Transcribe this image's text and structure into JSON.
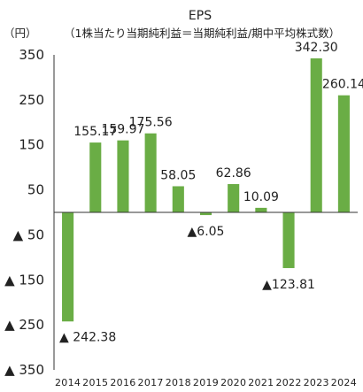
{
  "chart_data": {
    "type": "bar",
    "title": "EPS",
    "unit": "（円）",
    "subtitle": "（1株当たり当期純利益＝当期純利益/期中平均株式数）",
    "categories": [
      "2014",
      "2015",
      "2016",
      "2017",
      "2018",
      "2019",
      "2020",
      "2021",
      "2022",
      "2023",
      "2024"
    ],
    "values": [
      -242.38,
      155.17,
      159.97,
      175.56,
      58.05,
      -6.05,
      62.86,
      10.09,
      -123.81,
      342.3,
      260.14
    ],
    "value_labels": [
      "▲ 242.38",
      "155.17",
      "159.97",
      "175.56",
      "58.05",
      "▲6.05",
      "62.86",
      "10.09",
      "▲123.81",
      "342.30",
      "260.14"
    ],
    "ylim": [
      -350,
      350
    ],
    "yticks": [
      350,
      250,
      150,
      50,
      -50,
      -150,
      -250,
      -350
    ],
    "ytick_labels": [
      "350",
      "250",
      "150",
      "50",
      "▲ 50",
      "▲ 150",
      "▲ 250",
      "▲ 350"
    ],
    "grid": false,
    "legend": "none",
    "colors": {
      "bar": "#6aad45",
      "axis": "#333333",
      "text": "#222222"
    }
  }
}
